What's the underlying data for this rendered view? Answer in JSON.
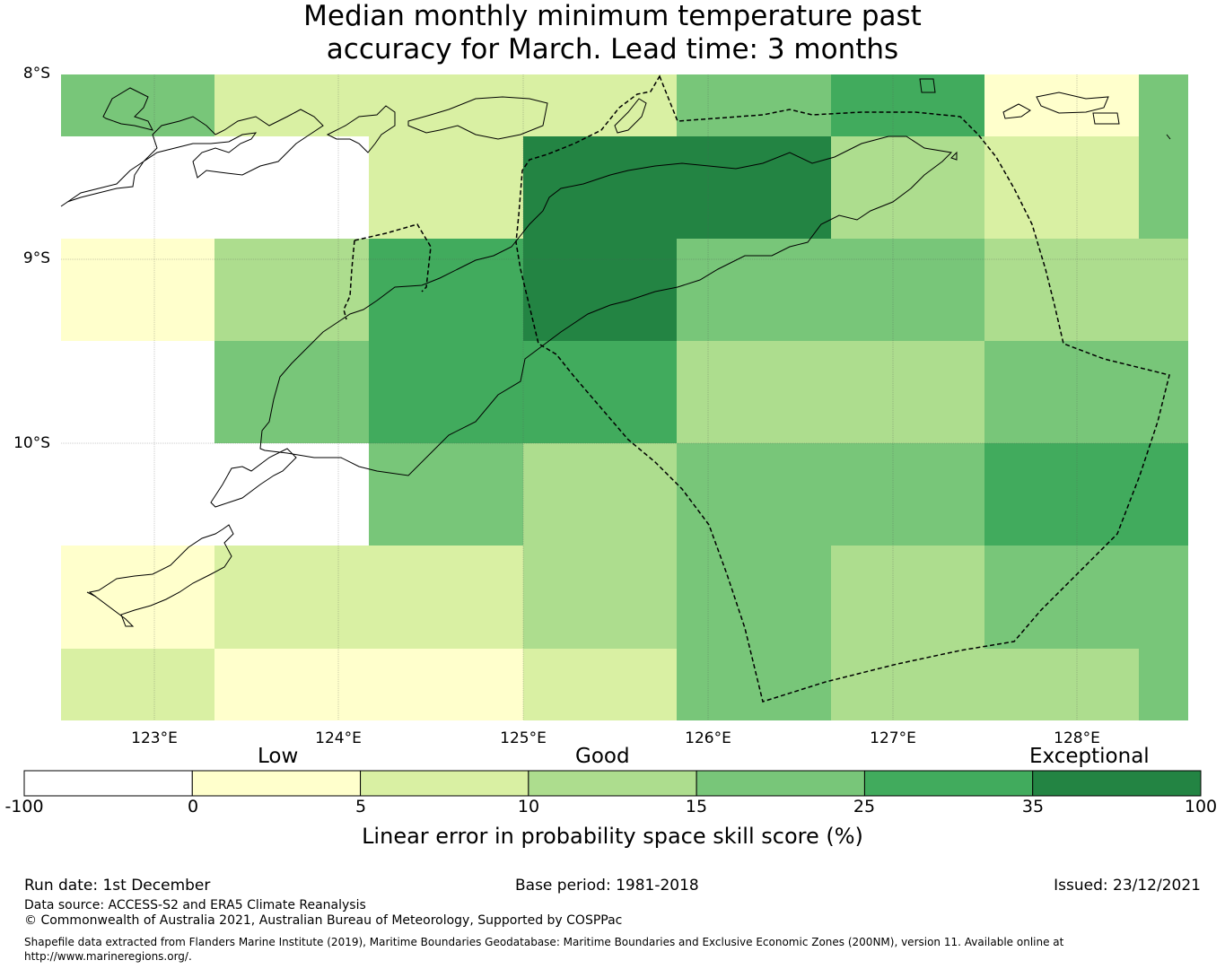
{
  "title_line1": "Median monthly minimum temperature past",
  "title_line2": "accuracy for March. Lead time: 3 months",
  "lat_labels": [
    "8°S",
    "9°S",
    "10°S"
  ],
  "lon_labels": [
    "123°E",
    "124°E",
    "125°E",
    "126°E",
    "127°E",
    "128°E"
  ],
  "colors": {
    "none": "#ffffff",
    "c1": "#ffffcc",
    "c2": "#d9f0a3",
    "c3": "#addd8e",
    "c4": "#78c679",
    "c5": "#41ab5d",
    "c6": "#238443"
  },
  "legend": {
    "categories": [
      "Low",
      "Good",
      "Exceptional"
    ],
    "ticks": [
      "-100",
      "0",
      "5",
      "10",
      "15",
      "25",
      "35",
      "100"
    ],
    "bins": [
      "none",
      "c1",
      "c2",
      "c3",
      "c4",
      "c5",
      "c6"
    ],
    "label": "Linear error in probability space skill score (%)"
  },
  "map": {
    "lon_range": [
      122.5,
      128.6
    ],
    "lat_range": [
      -11.5,
      -8.0
    ],
    "grid": [
      [
        "c4",
        "c2",
        "c2",
        "c2",
        "c4",
        "c5",
        "c1",
        "c4"
      ],
      [
        "none",
        "none",
        "c2",
        "c6",
        "c6",
        "c3",
        "c2",
        "c4"
      ],
      [
        "c1",
        "c3",
        "c5",
        "c6",
        "c4",
        "c4",
        "c3",
        "c3"
      ],
      [
        "none",
        "c4",
        "c5",
        "c5",
        "c3",
        "c3",
        "c4",
        "c4"
      ],
      [
        "none",
        "none",
        "c4",
        "c3",
        "c4",
        "c4",
        "c5",
        "c5"
      ],
      [
        "c1",
        "c2",
        "c2",
        "c3",
        "c4",
        "c3",
        "c4",
        "c4"
      ],
      [
        "c2",
        "c1",
        "c1",
        "c2",
        "c4",
        "c3",
        "c3",
        "c4"
      ]
    ]
  },
  "footer": {
    "run_date": "Run date: 1st December",
    "base_period": "Base period: 1981-2018",
    "issued": "Issued: 23/12/2021",
    "data_source": "Data source: ACCESS-S2 and ERA5 Climate Reanalysis",
    "copyright": "© Commonwealth of Australia 2021, Australian Bureau of Meteorology, Supported by COSPPac",
    "shapefile": "Shapefile data extracted from Flanders Marine Institute (2019), Maritime Boundaries Geodatabase: Maritime Boundaries and Exclusive Economic Zones (200NM), version 11. Available online at http://www.marineregions.org/."
  }
}
